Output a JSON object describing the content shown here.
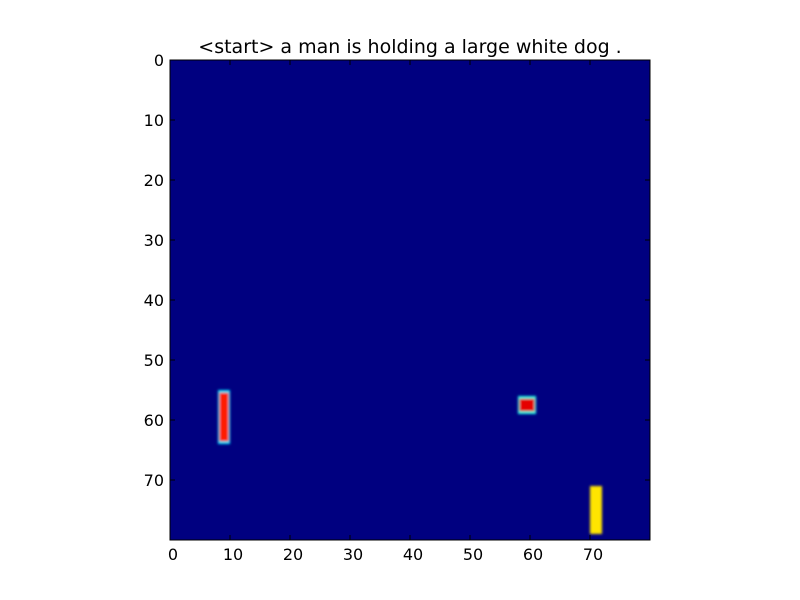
{
  "chart_data": {
    "type": "heatmap",
    "title": "<start> a man is holding a large white dog .",
    "xlabel": "",
    "ylabel": "",
    "xlim": [
      0,
      80
    ],
    "ylim": [
      80,
      0
    ],
    "y_axis_inverted": true,
    "grid": false,
    "colormap": "jet",
    "background_value": 0,
    "x_ticks": [
      0,
      10,
      20,
      30,
      40,
      50,
      60,
      70
    ],
    "y_ticks": [
      0,
      10,
      20,
      30,
      40,
      50,
      60,
      70
    ],
    "hotspots": [
      {
        "x": [
          8,
          10
        ],
        "y": [
          55,
          64
        ],
        "value": 0.85,
        "edge_value": 0.35
      },
      {
        "x": [
          58,
          61
        ],
        "y": [
          56,
          59
        ],
        "value": 0.9,
        "edge_value": 0.4
      },
      {
        "x": [
          70,
          72
        ],
        "y": [
          71,
          79
        ],
        "value": 0.65,
        "edge_value": 0.65
      }
    ]
  }
}
